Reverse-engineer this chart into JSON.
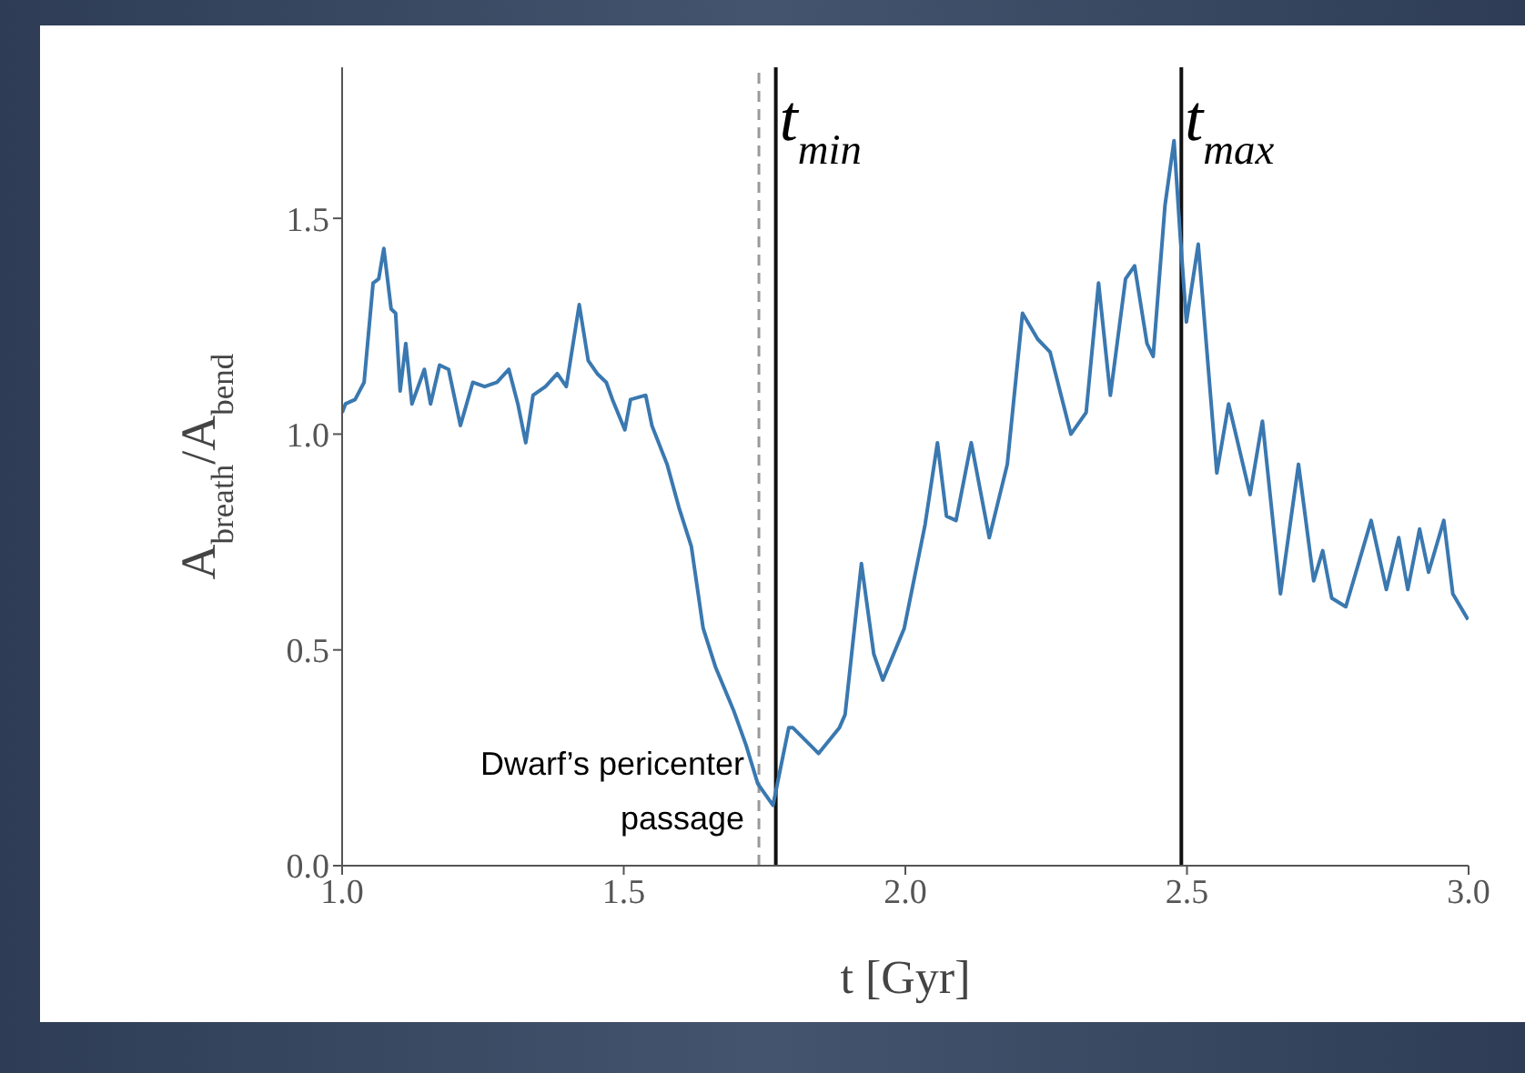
{
  "chart_data": {
    "type": "line",
    "xlabel": "t [Gyr]",
    "ylabel": "A$_{breath}$/A$_{bend}$",
    "xlim": [
      1.0,
      3.0
    ],
    "xticks": [
      {
        "value": 1.0,
        "label": "1.0"
      },
      {
        "value": 1.5,
        "label": "1.5"
      },
      {
        "value": 2.0,
        "label": "2.0"
      },
      {
        "value": 2.5,
        "label": "2.5"
      },
      {
        "value": 3.0,
        "label": "3.0"
      }
    ],
    "ylim": [
      0.0,
      1.85
    ],
    "yticks": [
      {
        "value": 0.0,
        "label": "0.0"
      },
      {
        "value": 0.5,
        "label": "0.5"
      },
      {
        "value": 1.0,
        "label": "1.0"
      },
      {
        "value": 1.5,
        "label": "1.5"
      }
    ],
    "grid": false,
    "marker": "none",
    "line_style": "solid",
    "x": [
      1.0,
      1.006,
      1.023,
      1.039,
      1.055,
      1.065,
      1.074,
      1.087,
      1.095,
      1.103,
      1.113,
      1.124,
      1.146,
      1.157,
      1.173,
      1.189,
      1.21,
      1.232,
      1.253,
      1.275,
      1.296,
      1.312,
      1.326,
      1.339,
      1.361,
      1.382,
      1.398,
      1.421,
      1.437,
      1.453,
      1.469,
      1.48,
      1.502,
      1.512,
      1.539,
      1.55,
      1.577,
      1.598,
      1.62,
      1.641,
      1.663,
      1.695,
      1.717,
      1.738,
      1.765,
      1.793,
      1.8,
      1.846,
      1.883,
      1.893,
      1.922,
      1.944,
      1.96,
      1.998,
      2.035,
      2.057,
      2.073,
      2.09,
      2.117,
      2.149,
      2.181,
      2.208,
      2.235,
      2.257,
      2.294,
      2.321,
      2.343,
      2.364,
      2.391,
      2.407,
      2.429,
      2.44,
      2.461,
      2.477,
      2.488,
      2.499,
      2.52,
      2.553,
      2.574,
      2.612,
      2.634,
      2.666,
      2.698,
      2.725,
      2.741,
      2.757,
      2.782,
      2.827,
      2.854,
      2.876,
      2.892,
      2.913,
      2.929,
      2.956,
      2.972,
      2.999
    ],
    "series": [
      {
        "color": "#3a78b0",
        "values": [
          1.05,
          1.07,
          1.08,
          1.12,
          1.35,
          1.36,
          1.43,
          1.29,
          1.28,
          1.1,
          1.21,
          1.07,
          1.15,
          1.07,
          1.16,
          1.15,
          1.02,
          1.12,
          1.11,
          1.12,
          1.15,
          1.07,
          0.98,
          1.09,
          1.11,
          1.14,
          1.11,
          1.3,
          1.17,
          1.14,
          1.12,
          1.08,
          1.01,
          1.08,
          1.09,
          1.02,
          0.93,
          0.83,
          0.74,
          0.55,
          0.46,
          0.36,
          0.28,
          0.19,
          0.14,
          0.32,
          0.32,
          0.26,
          0.32,
          0.35,
          0.7,
          0.49,
          0.43,
          0.55,
          0.79,
          0.98,
          0.81,
          0.8,
          0.98,
          0.76,
          0.93,
          1.28,
          1.22,
          1.19,
          1.0,
          1.05,
          1.35,
          1.09,
          1.36,
          1.39,
          1.21,
          1.18,
          1.53,
          1.68,
          1.46,
          1.26,
          1.44,
          0.91,
          1.07,
          0.86,
          1.03,
          0.63,
          0.93,
          0.66,
          0.73,
          0.62,
          0.6,
          0.8,
          0.64,
          0.76,
          0.64,
          0.78,
          0.68,
          0.8,
          0.63,
          0.57
        ]
      }
    ],
    "ref_lines": [
      {
        "axis": "x",
        "value": 1.74,
        "label": "Dwarf’s pericenter passage",
        "color": "#999999",
        "line_style": "dashed"
      },
      {
        "axis": "x",
        "value": 1.77,
        "label": "t$_{min}$",
        "color": "#111111",
        "line_style": "solid"
      },
      {
        "axis": "x",
        "value": 2.49,
        "label": "t$_{max}$",
        "color": "#111111",
        "line_style": "solid"
      }
    ]
  }
}
